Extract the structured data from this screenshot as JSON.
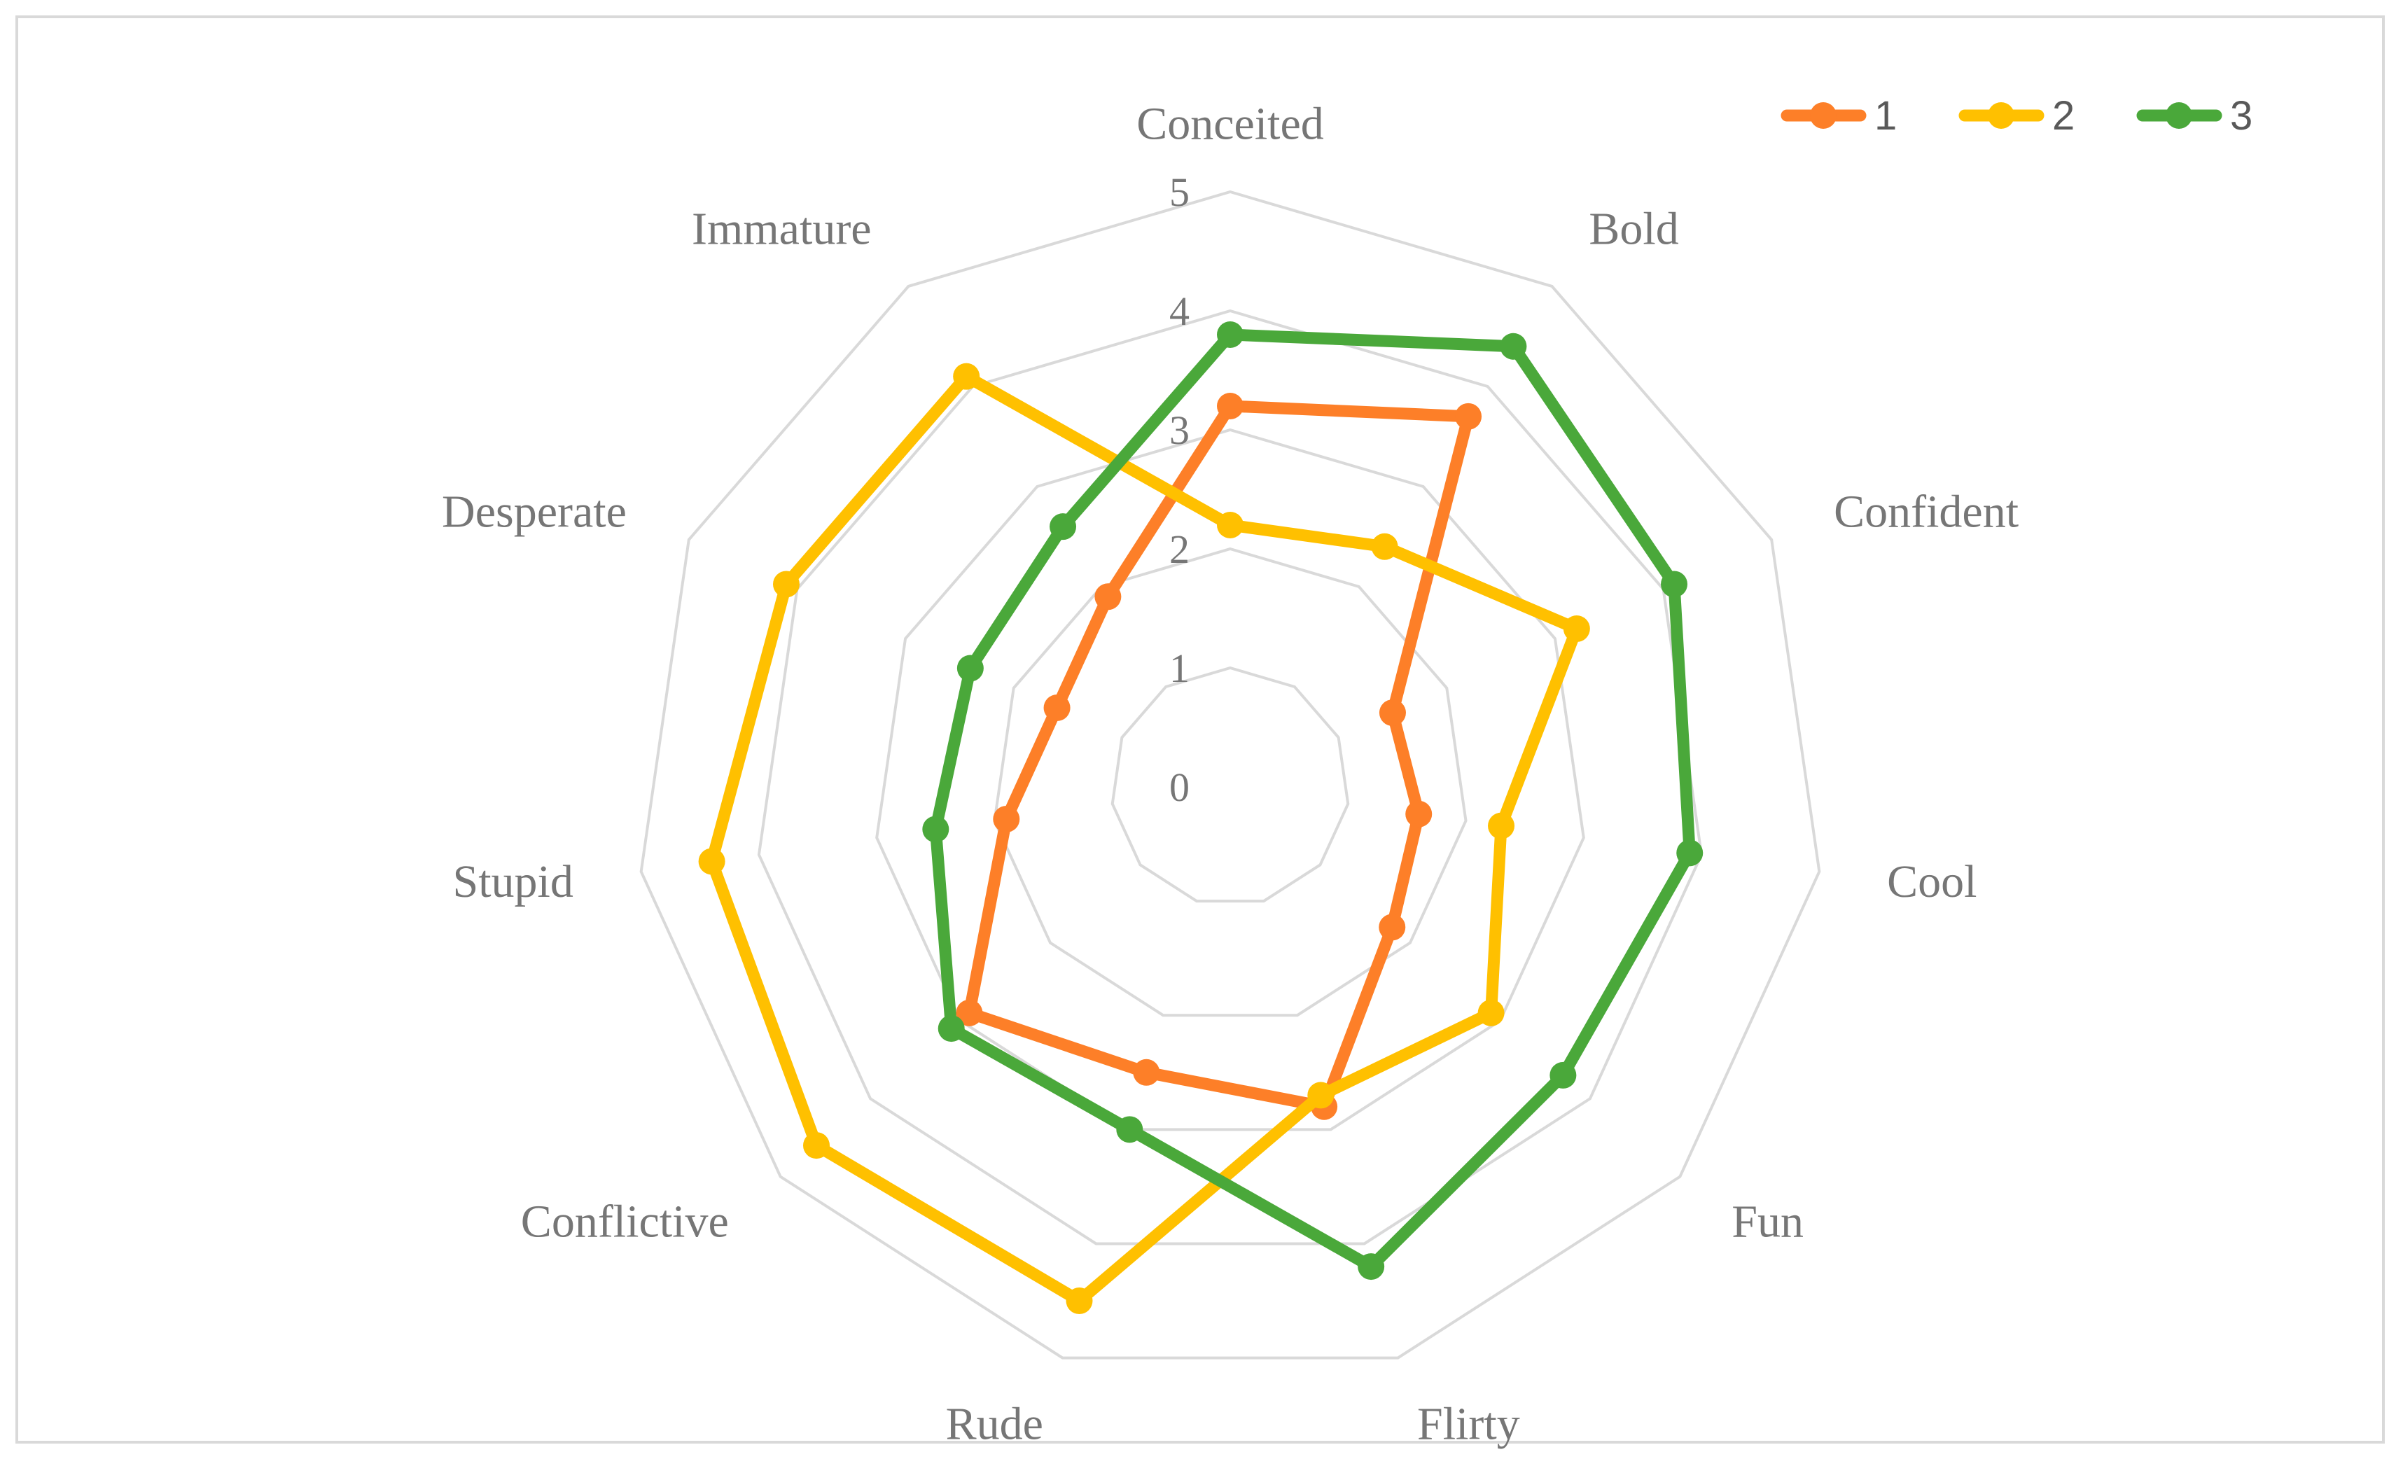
{
  "chart_data": {
    "type": "radar",
    "categories": [
      "Conceited",
      "Bold",
      "Confident",
      "Cool",
      "Fun",
      "Flirty",
      "Rude",
      "Conflictive",
      "Stupid",
      "Desperate",
      "Immature"
    ],
    "r_ticks": [
      "0",
      "1",
      "2",
      "3",
      "4",
      "5"
    ],
    "r_range": [
      0,
      5
    ],
    "legend_position": "top-right",
    "series": [
      {
        "name": "1",
        "color": "#fd7f28",
        "values": [
          3.2,
          3.7,
          1.5,
          1.6,
          1.8,
          2.8,
          2.5,
          2.9,
          1.9,
          1.6,
          1.9
        ]
      },
      {
        "name": "2",
        "color": "#ffc000",
        "values": [
          2.2,
          2.4,
          3.2,
          2.3,
          2.9,
          2.7,
          4.5,
          4.6,
          4.4,
          4.1,
          4.1
        ]
      },
      {
        "name": "3",
        "color": "#4aa83a",
        "values": [
          3.8,
          4.4,
          4.1,
          3.9,
          3.7,
          4.2,
          3.0,
          3.1,
          2.5,
          2.4,
          2.6
        ]
      }
    ]
  }
}
